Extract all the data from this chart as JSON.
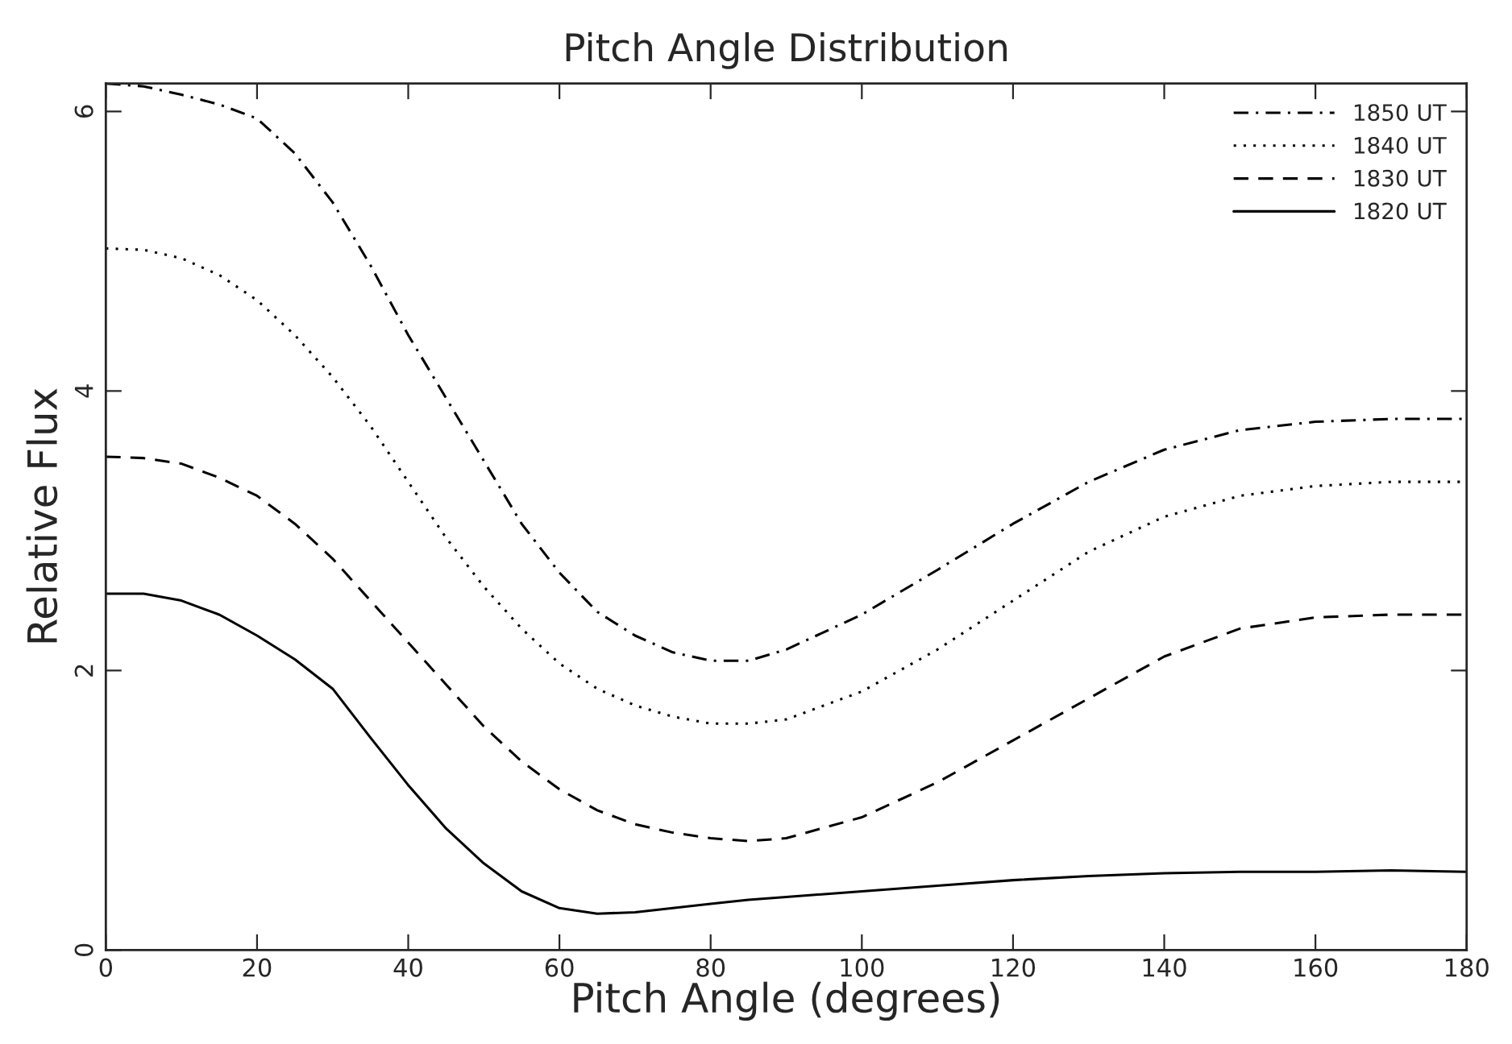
{
  "chart_data": {
    "type": "line",
    "title": "Pitch Angle Distribution",
    "xlabel": "Pitch Angle (degrees)",
    "ylabel": "Relative Flux",
    "x": [
      0,
      5,
      10,
      15,
      20,
      25,
      30,
      35,
      40,
      45,
      50,
      55,
      60,
      65,
      70,
      75,
      80,
      85,
      90,
      100,
      110,
      120,
      130,
      140,
      150,
      160,
      170,
      180
    ],
    "series": [
      {
        "name": "1850 UT",
        "color": "#000000",
        "line_style": "dashdot",
        "values": [
          6.2,
          6.18,
          6.12,
          6.05,
          5.95,
          5.7,
          5.35,
          4.9,
          4.4,
          3.95,
          3.5,
          3.05,
          2.7,
          2.42,
          2.25,
          2.13,
          2.07,
          2.07,
          2.15,
          2.4,
          2.72,
          3.05,
          3.35,
          3.58,
          3.72,
          3.78,
          3.8,
          3.8
        ]
      },
      {
        "name": "1840 UT",
        "color": "#000000",
        "line_style": "dotted",
        "values": [
          5.02,
          5.01,
          4.95,
          4.83,
          4.65,
          4.4,
          4.1,
          3.75,
          3.35,
          2.95,
          2.6,
          2.3,
          2.05,
          1.87,
          1.75,
          1.67,
          1.62,
          1.62,
          1.65,
          1.85,
          2.15,
          2.5,
          2.85,
          3.1,
          3.25,
          3.32,
          3.35,
          3.35
        ]
      },
      {
        "name": "1830 UT",
        "color": "#000000",
        "line_style": "dashed",
        "values": [
          3.53,
          3.52,
          3.48,
          3.38,
          3.25,
          3.05,
          2.8,
          2.5,
          2.2,
          1.9,
          1.6,
          1.35,
          1.15,
          1.0,
          0.9,
          0.84,
          0.8,
          0.78,
          0.8,
          0.95,
          1.2,
          1.5,
          1.8,
          2.1,
          2.3,
          2.38,
          2.4,
          2.4
        ]
      },
      {
        "name": "1820 UT",
        "color": "#000000",
        "line_style": "solid",
        "values": [
          2.55,
          2.55,
          2.5,
          2.4,
          2.25,
          2.08,
          1.87,
          1.52,
          1.18,
          0.87,
          0.62,
          0.42,
          0.3,
          0.26,
          0.27,
          0.3,
          0.33,
          0.36,
          0.38,
          0.42,
          0.46,
          0.5,
          0.53,
          0.55,
          0.56,
          0.56,
          0.57,
          0.56
        ]
      }
    ],
    "xlim": [
      0,
      180
    ],
    "xticks": [
      0,
      20,
      40,
      60,
      80,
      100,
      120,
      140,
      160,
      180
    ],
    "ylim": [
      0,
      6.2
    ],
    "yticks": [
      0,
      2,
      4,
      6
    ],
    "grid": false,
    "legend": "top right"
  }
}
